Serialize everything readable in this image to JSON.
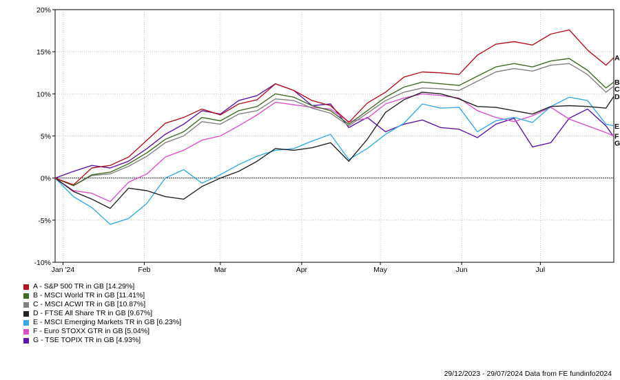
{
  "chart_data": {
    "type": "line",
    "title": "",
    "xlabel": "",
    "ylabel": "",
    "ylim": [
      -10,
      20
    ],
    "xlim": [
      "2023-12-29",
      "2024-07-29"
    ],
    "y_ticks": [
      "20%",
      "15%",
      "10%",
      "5%",
      "0%",
      "-5%",
      "-10%"
    ],
    "y_tick_values": [
      20,
      15,
      10,
      5,
      0,
      -5,
      -10
    ],
    "x_ticks": [
      {
        "label": "Jan '24",
        "date": "2024-01-01"
      },
      {
        "label": "Feb",
        "date": "2024-02-01"
      },
      {
        "label": "Mar",
        "date": "2024-03-01"
      },
      {
        "label": "Apr",
        "date": "2024-04-01"
      },
      {
        "label": "May",
        "date": "2024-05-01"
      },
      {
        "label": "Jun",
        "date": "2024-06-01"
      },
      {
        "label": "Jul",
        "date": "2024-07-01"
      }
    ],
    "grid": true,
    "legend_position": "bottom-left",
    "x": [
      "2023-12-29",
      "2024-01-05",
      "2024-01-12",
      "2024-01-19",
      "2024-01-26",
      "2024-02-02",
      "2024-02-09",
      "2024-02-16",
      "2024-02-23",
      "2024-03-01",
      "2024-03-08",
      "2024-03-15",
      "2024-03-22",
      "2024-03-29",
      "2024-04-05",
      "2024-04-12",
      "2024-04-19",
      "2024-04-26",
      "2024-05-03",
      "2024-05-10",
      "2024-05-17",
      "2024-05-24",
      "2024-05-31",
      "2024-06-07",
      "2024-06-14",
      "2024-06-21",
      "2024-06-28",
      "2024-07-05",
      "2024-07-12",
      "2024-07-19",
      "2024-07-26",
      "2024-07-29"
    ],
    "series": [
      {
        "marker": "A",
        "name": "A - S&P 500 TR in GB [14.29%]",
        "color": "#b0131e",
        "values": [
          0,
          -0.8,
          1.2,
          1.5,
          2.5,
          4.5,
          6.5,
          7.2,
          8.2,
          7.5,
          8.8,
          9.3,
          11.2,
          10.4,
          9.2,
          8.6,
          6.6,
          8.9,
          10.2,
          12.0,
          12.6,
          12.5,
          12.3,
          14.6,
          15.9,
          16.2,
          15.8,
          17.1,
          17.6,
          15.2,
          13.4,
          14.3
        ]
      },
      {
        "marker": "B",
        "name": "B - MSCI World TR in GB [11.41%]",
        "color": "#3e6b23",
        "values": [
          0,
          -0.9,
          0.4,
          0.7,
          1.7,
          3.0,
          4.6,
          5.5,
          7.2,
          6.8,
          8.0,
          8.5,
          10.0,
          9.6,
          8.6,
          8.0,
          6.4,
          8.0,
          9.6,
          10.8,
          11.4,
          11.2,
          11.0,
          12.1,
          13.2,
          13.6,
          13.2,
          13.9,
          14.2,
          12.8,
          10.7,
          11.4
        ]
      },
      {
        "marker": "C",
        "name": "C - MSCI ACWI TR in GB [10.87%]",
        "color": "#808080",
        "values": [
          0,
          -0.9,
          0.3,
          0.5,
          1.4,
          2.6,
          4.2,
          5.0,
          6.7,
          6.4,
          7.6,
          8.0,
          9.4,
          9.2,
          8.3,
          7.7,
          6.2,
          7.7,
          9.2,
          10.2,
          10.7,
          10.6,
          10.4,
          11.5,
          12.6,
          13.0,
          12.7,
          13.4,
          13.6,
          12.3,
          10.2,
          10.9
        ]
      },
      {
        "marker": "D",
        "name": "D - FTSE All Share TR in GB [9.67%]",
        "color": "#222222",
        "values": [
          0,
          -1.6,
          -2.5,
          -3.6,
          -1.2,
          -1.5,
          -2.2,
          -2.5,
          -1.0,
          0,
          0.8,
          2.0,
          3.5,
          3.3,
          3.6,
          4.2,
          2.0,
          4.6,
          7.8,
          9.3,
          10.2,
          10.0,
          9.4,
          8.5,
          8.4,
          8.0,
          7.6,
          8.5,
          8.6,
          8.5,
          8.3,
          9.7
        ]
      },
      {
        "marker": "E",
        "name": "E - MSCI Emerging Markets TR in GB [6.23%]",
        "color": "#3aa9e3",
        "values": [
          0,
          -2.2,
          -3.5,
          -5.5,
          -4.8,
          -3.0,
          0,
          1.0,
          -0.6,
          0.4,
          1.6,
          2.6,
          3.3,
          3.5,
          4.4,
          5.2,
          2.2,
          3.5,
          5.2,
          6.5,
          8.8,
          8.3,
          8.4,
          5.5,
          6.8,
          7.2,
          6.6,
          8.5,
          9.6,
          9.2,
          6.4,
          6.2
        ]
      },
      {
        "marker": "F",
        "name": "F - Euro STOXX GTR in GB [5.04%]",
        "color": "#d752c8",
        "values": [
          0,
          -1.5,
          -1.8,
          -2.8,
          -0.5,
          0.5,
          2.5,
          3.3,
          4.5,
          5.0,
          6.2,
          7.5,
          9.0,
          8.7,
          8.4,
          8.2,
          6.7,
          7.1,
          8.8,
          9.5,
          10.0,
          9.8,
          9.5,
          8.0,
          7.2,
          6.7,
          7.4,
          8.4,
          7.0,
          6.2,
          5.4,
          5.0
        ]
      },
      {
        "marker": "G",
        "name": "G - TSE TOPIX TR in GB [4.93%]",
        "color": "#5c17a3",
        "values": [
          0,
          0.8,
          1.5,
          1.2,
          2.0,
          3.5,
          5.2,
          6.4,
          8.0,
          7.6,
          9.2,
          9.8,
          11.2,
          10.4,
          8.6,
          8.8,
          6.0,
          7.2,
          5.5,
          6.4,
          6.9,
          6.0,
          5.8,
          4.8,
          6.4,
          7.1,
          3.7,
          4.2,
          7.1,
          8.2,
          6.2,
          4.9
        ]
      }
    ]
  },
  "footer": {
    "text": "29/12/2023 - 29/07/2024 Data from FE fundinfo2024"
  }
}
